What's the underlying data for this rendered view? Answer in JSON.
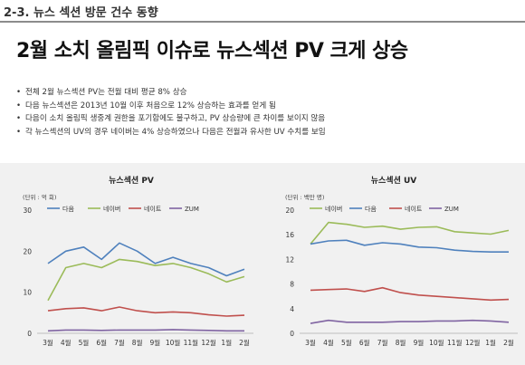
{
  "header": {
    "section_title": "2-3. 뉴스 섹션 방문 건수 동향",
    "headline": "2월 소치 올림픽 이슈로 뉴스섹션 PV 크게 상승"
  },
  "bullets": [
    "전체 2월 뉴스섹션 PV는 전월 대비 평균 8% 상승",
    "다음 뉴스섹션은 2013년 10월 이후 처음으로 12% 상승하는 효과를 얻게 됨",
    "다음이 소치 올림픽 생중계 권한을 포기함에도 불구하고, PV 상승량에 큰 차이를 보이지 않음",
    "각 뉴스섹션의 UV의 경우 네이버는 4% 상승하였으나 다음은 전월과 유사한 UV  수치를 보임"
  ],
  "colors": {
    "다음": "#4f81bd",
    "네이버": "#9bbb59",
    "네이트": "#c0504d",
    "ZUM": "#8064a2"
  },
  "chart_data": [
    {
      "type": "line",
      "title": "뉴스섹션 PV",
      "unit_label": "(단위 : 억 회)",
      "categories": [
        "3월",
        "4월",
        "5월",
        "6월",
        "7월",
        "8월",
        "9월",
        "10월",
        "11월",
        "12월",
        "1월",
        "2월"
      ],
      "ylim": [
        0,
        30
      ],
      "yticks": [
        0,
        10,
        20,
        30
      ],
      "grid": false,
      "legend": "top",
      "series": [
        {
          "name": "다음",
          "values": [
            17,
            20,
            21,
            18,
            22,
            20,
            17,
            18.5,
            17,
            16,
            14,
            15.6
          ]
        },
        {
          "name": "네이버",
          "values": [
            8,
            16,
            17,
            16,
            18,
            17.5,
            16.5,
            17,
            16,
            14.5,
            12.5,
            13.8
          ]
        },
        {
          "name": "네이트",
          "values": [
            5.5,
            6,
            6.2,
            5.5,
            6.4,
            5.5,
            5,
            5.2,
            5,
            4.5,
            4.2,
            4.4
          ]
        },
        {
          "name": "ZUM",
          "values": [
            0.6,
            0.8,
            0.8,
            0.7,
            0.8,
            0.8,
            0.8,
            0.9,
            0.8,
            0.7,
            0.6,
            0.6
          ]
        }
      ]
    },
    {
      "type": "line",
      "title": "뉴스섹션 UV",
      "unit_label": "(단위 : 백만 명)",
      "categories": [
        "3월",
        "4월",
        "5월",
        "6월",
        "7월",
        "8월",
        "9월",
        "10월",
        "11월",
        "12월",
        "1월",
        "2월"
      ],
      "ylim": [
        0,
        20
      ],
      "yticks": [
        0,
        4,
        8,
        12,
        16,
        20
      ],
      "grid": false,
      "legend": "top",
      "series": [
        {
          "name": "네이버",
          "values": [
            14.5,
            18,
            17.7,
            17.2,
            17.4,
            16.9,
            17.2,
            17.3,
            16.5,
            16.3,
            16.1,
            16.7
          ]
        },
        {
          "name": "다음",
          "values": [
            14.5,
            15,
            15.1,
            14.3,
            14.7,
            14.5,
            14,
            13.9,
            13.5,
            13.3,
            13.2,
            13.2
          ]
        },
        {
          "name": "네이트",
          "values": [
            7,
            7.1,
            7.2,
            6.8,
            7.4,
            6.6,
            6.2,
            6,
            5.8,
            5.6,
            5.4,
            5.5
          ]
        },
        {
          "name": "ZUM",
          "values": [
            1.6,
            2.1,
            1.8,
            1.8,
            1.8,
            1.9,
            1.9,
            2,
            2,
            2.1,
            2,
            1.8
          ]
        }
      ]
    }
  ]
}
